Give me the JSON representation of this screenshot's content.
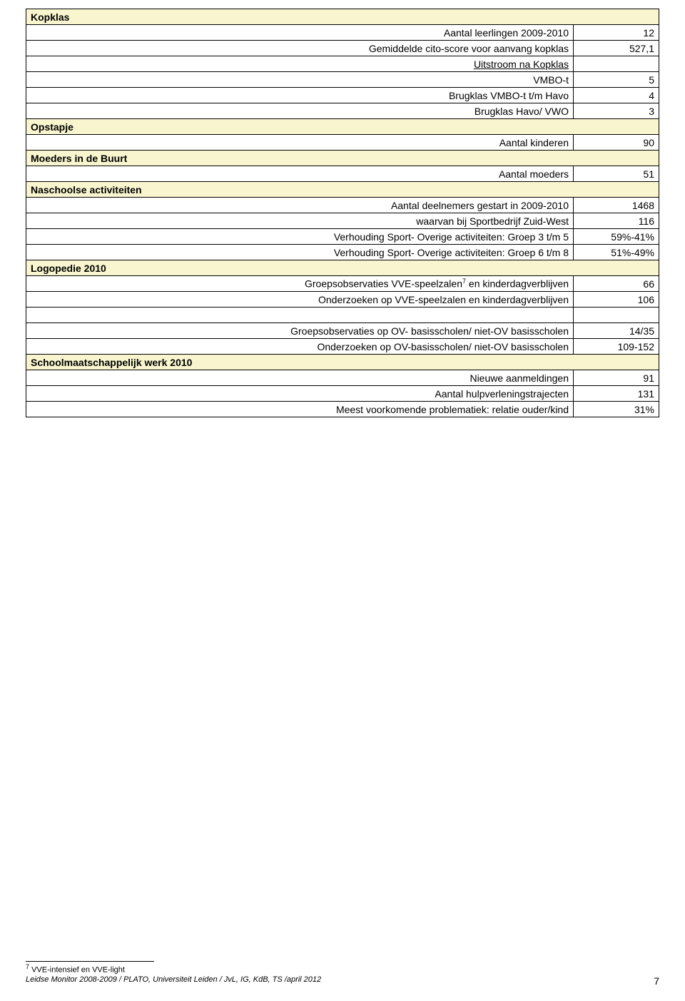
{
  "colors": {
    "section_bg": "#f9f6cf",
    "border": "#000000",
    "text": "#000000",
    "page_bg": "#ffffff"
  },
  "sections": {
    "kopklas": {
      "title": "Kopklas",
      "rows": [
        {
          "label": "Aantal leerlingen 2009-2010",
          "value": "12"
        },
        {
          "label": "Gemiddelde cito-score voor aanvang kopklas",
          "value": "527,1"
        }
      ],
      "subheading": "Uitstroom na Kopklas",
      "subrows": [
        {
          "label": "VMBO-t",
          "value": "5"
        },
        {
          "label": "Brugklas VMBO-t t/m Havo",
          "value": "4"
        },
        {
          "label": "Brugklas Havo/ VWO",
          "value": "3"
        }
      ]
    },
    "opstapje": {
      "title": "Opstapje",
      "row": {
        "label": "Aantal kinderen",
        "value": "90"
      }
    },
    "moeders": {
      "title": "Moeders in de Buurt",
      "row": {
        "label": "Aantal moeders",
        "value": "51"
      }
    },
    "naschoolse": {
      "title": "Naschoolse activiteiten",
      "rows": [
        {
          "label": "Aantal deelnemers gestart in 2009-2010",
          "value": "1468"
        },
        {
          "label": "waarvan bij Sportbedrijf Zuid-West",
          "value": "116"
        },
        {
          "label": "Verhouding Sport- Overige activiteiten: Groep 3 t/m 5",
          "value": "59%-41%"
        },
        {
          "label": "Verhouding Sport- Overige activiteiten: Groep 6 t/m 8",
          "value": "51%-49%"
        }
      ]
    },
    "logopedie": {
      "title": "Logopedie 2010",
      "rows": [
        {
          "label_pre": "Groepsobservaties VVE-speelzalen",
          "sup": "7",
          "label_post": " en kinderdagverblijven",
          "value": "66"
        },
        {
          "label": "Onderzoeken op VVE-speelzalen en kinderdagverblijven",
          "value": "106"
        }
      ],
      "rows2": [
        {
          "label": "Groepsobservaties op OV- basisscholen/ niet-OV basisscholen",
          "value": "14/35"
        },
        {
          "label": "Onderzoeken op OV-basisscholen/ niet-OV basisscholen",
          "value": "109-152"
        }
      ]
    },
    "school": {
      "title": "Schoolmaatschappelijk werk 2010",
      "rows": [
        {
          "label": "Nieuwe aanmeldingen",
          "value": "91"
        },
        {
          "label": "Aantal hulpverleningstrajecten",
          "value": "131"
        },
        {
          "label": "Meest voorkomende problematiek: relatie ouder/kind",
          "value": "31%"
        }
      ]
    }
  },
  "footnote": {
    "marker": "7",
    "text": "VVE-intensief en VVE-light"
  },
  "footer": {
    "text": "Leidse Monitor 2008-2009 / PLATO, Universiteit Leiden / JvL, IG, KdB, TS /april 2012",
    "page": "7"
  }
}
